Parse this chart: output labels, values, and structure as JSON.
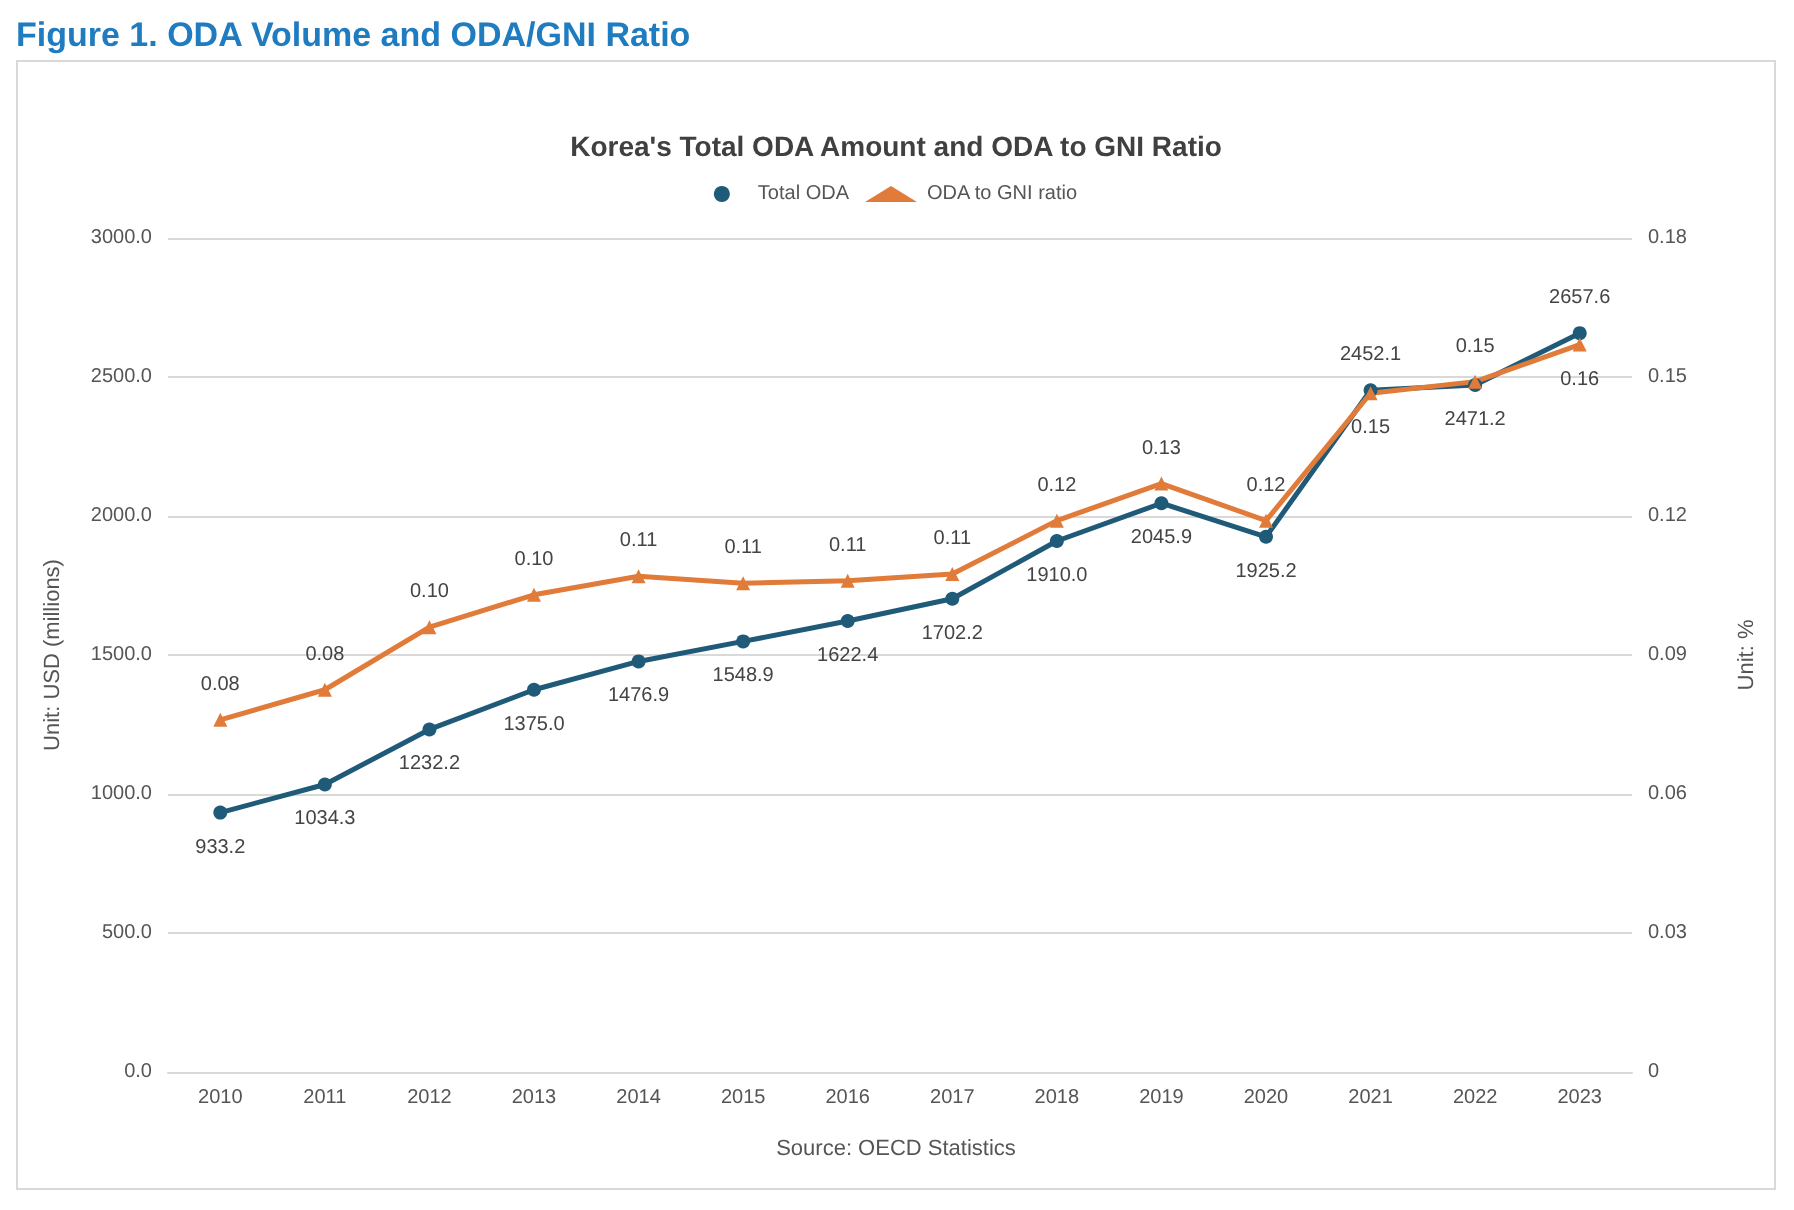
{
  "chart_data": {
    "type": "line",
    "title": "Figure 1. ODA Volume and ODA/GNI Ratio",
    "subtitle": "Korea's Total ODA Amount and ODA to GNI Ratio",
    "ylabel": "Unit: USD (millions)",
    "y2label": "Unit: %",
    "annotations": [
      "Source: OECD Statistics"
    ],
    "categories": [
      "2010",
      "2011",
      "2012",
      "2013",
      "2014",
      "2015",
      "2016",
      "2017",
      "2018",
      "2019",
      "2020",
      "2021",
      "2022",
      "2023"
    ],
    "series": [
      {
        "name": "Total ODA",
        "color": "#1f5a78",
        "marker": "circle",
        "values": [
          933.2,
          1034.3,
          1232.2,
          1375.0,
          1476.9,
          1548.9,
          1622.4,
          1702.2,
          1910.0,
          2045.9,
          1925.2,
          2452.1,
          2471.2,
          2657.6
        ],
        "value_labels": [
          "933.2",
          "1034.3",
          "1232.2",
          "1375.0",
          "1476.9",
          "1548.9",
          "1622.4",
          "1702.2",
          "1910.0",
          "2045.9",
          "1925.2",
          "2452.1",
          "2471.2",
          "2657.6"
        ]
      },
      {
        "name": "ODA to GNI ratio",
        "color": "#e07b39",
        "marker": "triangle",
        "axis": "y2",
        "values": [
          0.076,
          0.0825,
          0.096,
          0.103,
          0.107,
          0.1055,
          0.106,
          0.1075,
          0.119,
          0.127,
          0.119,
          0.1465,
          0.149,
          0.157
        ],
        "value_labels": [
          "0.08",
          "0.08",
          "0.10",
          "0.10",
          "0.11",
          "0.11",
          "0.11",
          "0.11",
          "0.12",
          "0.13",
          "0.12",
          "0.15",
          "0.15",
          "0.16"
        ]
      }
    ],
    "ylim": [
      0,
      3000
    ],
    "yticks": [
      {
        "value": 0,
        "label": "0.0"
      },
      {
        "value": 500,
        "label": "500.0"
      },
      {
        "value": 1000,
        "label": "1000.0"
      },
      {
        "value": 1500,
        "label": "1500.0"
      },
      {
        "value": 2000,
        "label": "2000.0"
      },
      {
        "value": 2500,
        "label": "2500.0"
      },
      {
        "value": 3000,
        "label": "3000.0"
      }
    ],
    "y2lim": [
      0,
      0.18
    ],
    "y2ticks": [
      0,
      0.03,
      0.06,
      0.09,
      0.12,
      0.15,
      0.18
    ],
    "grid": "y",
    "legend": "top",
    "line_style": "solid"
  }
}
